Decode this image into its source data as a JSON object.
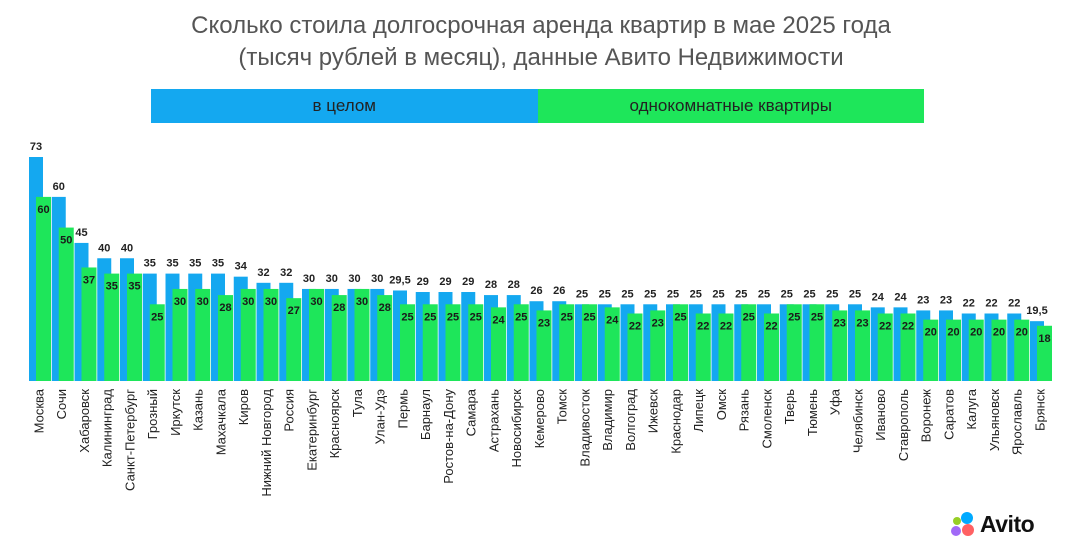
{
  "chart_data": {
    "type": "bar",
    "title": "Сколько стоила долгосрочная аренда квартир в мае 2025 года",
    "subtitle": "(тысяч рублей в месяц), данные Авито Недвижимости",
    "xlabel": "",
    "ylabel": "",
    "ylim": [
      0,
      73
    ],
    "grid": false,
    "legend_position": "top",
    "categories": [
      "Москва",
      "Сочи",
      "Хабаровск",
      "Калининград",
      "Санкт-Петербург",
      "Грозный",
      "Иркутск",
      "Казань",
      "Махачкала",
      "Киров",
      "Нижний Новгород",
      "Россия",
      "Екатеринбург",
      "Красноярск",
      "Тула",
      "Улан-Удэ",
      "Пермь",
      "Барнаул",
      "Ростов-на-Дону",
      "Самара",
      "Астрахань",
      "Новосибирск",
      "Кемерово",
      "Томск",
      "Владивосток",
      "Владимир",
      "Волгоград",
      "Ижевск",
      "Краснодар",
      "Липецк",
      "Омск",
      "Рязань",
      "Смоленск",
      "Тверь",
      "Тюмень",
      "Уфа",
      "Челябинск",
      "Иваново",
      "Ставрополь",
      "Воронеж",
      "Саратов",
      "Калуга",
      "Ульяновск",
      "Ярославль",
      "Брянск"
    ],
    "series": [
      {
        "name": "в целом",
        "color": "#14a8f0",
        "values": [
          73,
          60,
          45,
          40,
          40,
          35,
          35,
          35,
          35,
          34,
          32,
          32,
          30,
          30,
          30,
          30,
          29.5,
          29,
          29,
          29,
          28,
          28,
          26,
          26,
          25,
          25,
          25,
          25,
          25,
          25,
          25,
          25,
          25,
          25,
          25,
          25,
          25,
          24,
          24,
          23,
          23,
          22,
          22,
          22,
          19.5
        ],
        "labels": [
          "73",
          "60",
          "45",
          "40",
          "40",
          "35",
          "35",
          "35",
          "35",
          "34",
          "32",
          "32",
          "30",
          "30",
          "30",
          "30",
          "29,5",
          "29",
          "29",
          "29",
          "28",
          "28",
          "26",
          "26",
          "25",
          "25",
          "25",
          "25",
          "25",
          "25",
          "25",
          "25",
          "25",
          "25",
          "25",
          "25",
          "25",
          "24",
          "24",
          "23",
          "23",
          "22",
          "22",
          "22",
          "19,5"
        ]
      },
      {
        "name": "однокомнатные квартиры",
        "color": "#1ee65a",
        "values": [
          60,
          50,
          37,
          35,
          35,
          25,
          30,
          30,
          28,
          30,
          30,
          27,
          30,
          28,
          30,
          28,
          25,
          25,
          25,
          25,
          24,
          25,
          23,
          25,
          25,
          24,
          22,
          23,
          25,
          22,
          22,
          25,
          22,
          25,
          25,
          23,
          23,
          22,
          22,
          20,
          20,
          20,
          20,
          20,
          18
        ],
        "labels": [
          "60",
          "50",
          "37",
          "35",
          "35",
          "25",
          "30",
          "30",
          "28",
          "30",
          "30",
          "27",
          "30",
          "28",
          "30",
          "28",
          "25",
          "25",
          "25",
          "25",
          "24",
          "25",
          "23",
          "25",
          "25",
          "24",
          "22",
          "23",
          "25",
          "22",
          "22",
          "25",
          "22",
          "25",
          "25",
          "23",
          "23",
          "22",
          "22",
          "20",
          "20",
          "20",
          "20",
          "20",
          "18"
        ]
      }
    ]
  },
  "legend": {
    "overall": "в целом",
    "one_room": "однокомнатные квартиры"
  },
  "brand": {
    "name": "Avito",
    "dot_colors": [
      "#00aaff",
      "#97cf26",
      "#ff6163",
      "#a169f7"
    ]
  }
}
